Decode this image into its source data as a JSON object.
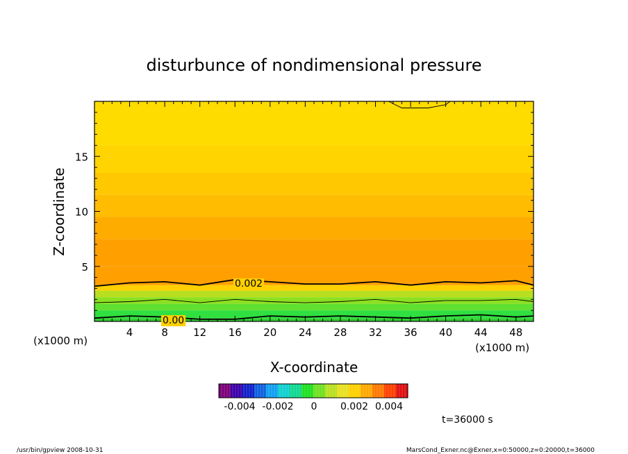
{
  "chart_data": {
    "type": "heatmap",
    "title": "disturbunce of nondimensional pressure",
    "xlabel": "X-coordinate",
    "ylabel": "Z-coordinate",
    "x_unit": "(x1000 m)",
    "y_unit": "(x1000 m)",
    "xlim": [
      0,
      50
    ],
    "ylim": [
      0,
      20
    ],
    "x_ticks": [
      4,
      8,
      12,
      16,
      20,
      24,
      28,
      32,
      36,
      40,
      44,
      48
    ],
    "y_ticks": [
      5,
      10,
      15
    ],
    "contour_labels": [
      "0.002",
      "0.00"
    ],
    "colorbar": {
      "ticks": [
        "-0.004",
        "-0.002",
        "0",
        "0.002",
        "0.004"
      ],
      "colors": [
        "#7b007b",
        "#3b00a8",
        "#1020c8",
        "#1060e0",
        "#10a0f0",
        "#10d0d0",
        "#10d890",
        "#20e020",
        "#70e020",
        "#b8e020",
        "#e8e020",
        "#ffd000",
        "#ffa800",
        "#ff7800",
        "#ff4000",
        "#e01010"
      ]
    },
    "profile": [
      {
        "z": 0.3,
        "color": "#30d030"
      },
      {
        "z": 1.0,
        "color": "#30e040"
      },
      {
        "z": 1.6,
        "color": "#60e030"
      },
      {
        "z": 2.2,
        "color": "#8ce020"
      },
      {
        "z": 2.8,
        "color": "#b8e020"
      },
      {
        "z": 3.3,
        "color": "#ffd000"
      },
      {
        "z": 5.0,
        "color": "#ffa000"
      },
      {
        "z": 7.5,
        "color": "#ffa000"
      },
      {
        "z": 9.5,
        "color": "#ffac00"
      },
      {
        "z": 11.5,
        "color": "#ffbc00"
      },
      {
        "z": 13.5,
        "color": "#ffc800"
      },
      {
        "z": 16.0,
        "color": "#ffd400"
      },
      {
        "z": 20.0,
        "color": "#ffdc00"
      }
    ],
    "contours": [
      {
        "level": "0.002",
        "points": [
          [
            0,
            3.2
          ],
          [
            4,
            3.5
          ],
          [
            8,
            3.6
          ],
          [
            12,
            3.3
          ],
          [
            16,
            3.8
          ],
          [
            20,
            3.6
          ],
          [
            24,
            3.4
          ],
          [
            28,
            3.4
          ],
          [
            32,
            3.6
          ],
          [
            36,
            3.3
          ],
          [
            40,
            3.6
          ],
          [
            44,
            3.5
          ],
          [
            48,
            3.7
          ],
          [
            50,
            3.3
          ]
        ]
      },
      {
        "level": "0.00",
        "points": [
          [
            0,
            0.3
          ],
          [
            4,
            0.5
          ],
          [
            8,
            0.4
          ],
          [
            12,
            0.2
          ],
          [
            16,
            0.2
          ],
          [
            20,
            0.5
          ],
          [
            24,
            0.4
          ],
          [
            28,
            0.5
          ],
          [
            32,
            0.4
          ],
          [
            36,
            0.3
          ],
          [
            40,
            0.5
          ],
          [
            44,
            0.6
          ],
          [
            48,
            0.4
          ],
          [
            50,
            0.5
          ]
        ]
      },
      {
        "level": "",
        "points": [
          [
            0,
            1.7
          ],
          [
            4,
            1.8
          ],
          [
            8,
            2.0
          ],
          [
            12,
            1.7
          ],
          [
            16,
            2.0
          ],
          [
            20,
            1.8
          ],
          [
            24,
            1.7
          ],
          [
            28,
            1.8
          ],
          [
            32,
            2.0
          ],
          [
            36,
            1.7
          ],
          [
            40,
            1.9
          ],
          [
            44,
            1.9
          ],
          [
            48,
            2.0
          ],
          [
            50,
            1.8
          ]
        ]
      },
      {
        "level": "",
        "points": [
          [
            33.5,
            20
          ],
          [
            35,
            19.4
          ],
          [
            38,
            19.4
          ],
          [
            40,
            19.7
          ],
          [
            40.5,
            20
          ]
        ]
      }
    ]
  },
  "footer": {
    "time_label": "t=36000 s",
    "left_text": "/usr/bin/gpview   2008-10-31",
    "right_text": "MarsCond_Exner.nc@Exner,x=0:50000,z=0:20000,t=36000"
  }
}
